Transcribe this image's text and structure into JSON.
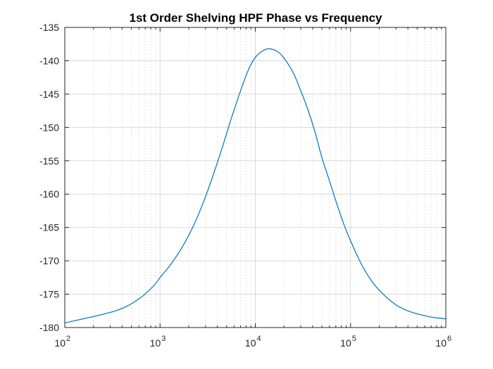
{
  "chart_data": {
    "type": "line",
    "title": "1st Order Shelving HPF Phase vs Frequency",
    "xlabel": "",
    "ylabel": "",
    "x_scale": "log",
    "xlim": [
      100,
      1000000
    ],
    "ylim": [
      -180,
      -135
    ],
    "grid": true,
    "x_ticks": [
      {
        "value": 100,
        "base": "10",
        "exp": "2"
      },
      {
        "value": 1000,
        "base": "10",
        "exp": "3"
      },
      {
        "value": 10000,
        "base": "10",
        "exp": "4"
      },
      {
        "value": 100000,
        "base": "10",
        "exp": "5"
      },
      {
        "value": 1000000,
        "base": "10",
        "exp": "6"
      }
    ],
    "y_ticks": [
      {
        "value": -135,
        "label": "-135"
      },
      {
        "value": -140,
        "label": "-140"
      },
      {
        "value": -145,
        "label": "-145"
      },
      {
        "value": -150,
        "label": "-150"
      },
      {
        "value": -155,
        "label": "-155"
      },
      {
        "value": -160,
        "label": "-160"
      },
      {
        "value": -165,
        "label": "-165"
      },
      {
        "value": -170,
        "label": "-170"
      },
      {
        "value": -175,
        "label": "-175"
      },
      {
        "value": -180,
        "label": "-180"
      }
    ],
    "series": [
      {
        "color": "#0072BD",
        "x": [
          100,
          340,
          600,
          850,
          1000,
          1300,
          1700,
          2200,
          2800,
          3500,
          4500,
          5500,
          7000,
          8500,
          10000,
          12000,
          14000,
          17000,
          20000,
          25000,
          30000,
          35000,
          42000,
          50000,
          60000,
          70000,
          85000,
          100000,
          130000,
          170000,
          220000,
          300000,
          400000,
          550000,
          750000,
          1000000
        ],
        "y": [
          -179.3,
          -177.5,
          -175.7,
          -173.8,
          -172.5,
          -170.5,
          -168.0,
          -165.0,
          -161.5,
          -157.7,
          -153.0,
          -149.0,
          -144.5,
          -141.3,
          -139.5,
          -138.5,
          -138.2,
          -138.6,
          -139.6,
          -141.8,
          -144.5,
          -147.0,
          -150.5,
          -154.5,
          -158.0,
          -161.0,
          -164.5,
          -167.0,
          -170.5,
          -173.2,
          -175.0,
          -176.6,
          -177.5,
          -178.1,
          -178.5,
          -178.7
        ]
      }
    ]
  }
}
